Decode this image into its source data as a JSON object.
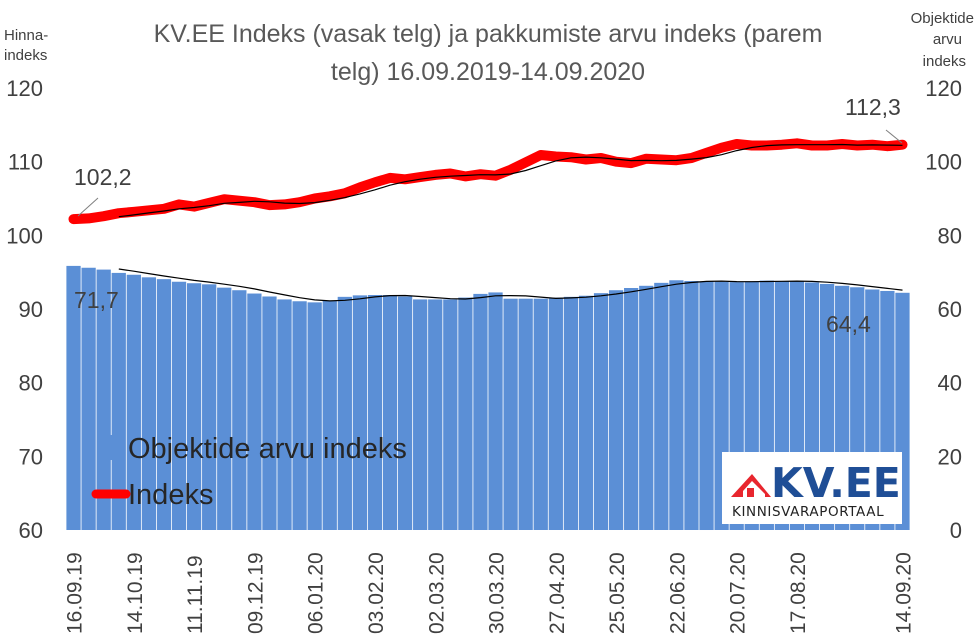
{
  "chart_data": {
    "type": "bar",
    "title_lines": [
      "KV.EE Indeks (vasak telg) ja pakkumiste arvu indeks (parem",
      "telg) 16.09.2019-14.09.2020"
    ],
    "left_axis_label_lines": [
      "Hinna-",
      "indeks"
    ],
    "right_axis_label_lines": [
      "Objektide",
      "arvu",
      "indeks"
    ],
    "left_ylim": [
      60,
      120
    ],
    "left_ticks": [
      "60",
      "70",
      "80",
      "90",
      "100",
      "110",
      "120"
    ],
    "right_ylim": [
      0,
      120
    ],
    "right_ticks": [
      "0",
      "20",
      "40",
      "60",
      "80",
      "100",
      "120"
    ],
    "x_tick_labels": [
      "16.09.19",
      "14.10.19",
      "11.11.19",
      "09.12.19",
      "06.01.20",
      "03.02.20",
      "02.03.20",
      "30.03.20",
      "27.04.20",
      "25.05.20",
      "22.06.20",
      "20.07.20",
      "17.08.20",
      "14.09.20"
    ],
    "series": [
      {
        "name": "Objektide arvu indeks",
        "axis": "right",
        "type": "bar",
        "color": "#5b8fd6",
        "values": [
          71.7,
          71.2,
          70.7,
          69.8,
          69.3,
          68.6,
          68.1,
          67.4,
          67.0,
          66.7,
          65.8,
          65.1,
          64.2,
          63.4,
          62.6,
          62.1,
          61.8,
          62.3,
          63.3,
          63.7,
          63.8,
          63.8,
          63.4,
          62.6,
          62.6,
          62.6,
          63.1,
          64.1,
          64.5,
          62.8,
          62.8,
          62.8,
          63.1,
          63.3,
          63.6,
          64.3,
          65.1,
          65.7,
          66.3,
          67.1,
          67.8,
          67.6,
          67.5,
          67.4,
          67.3,
          67.5,
          67.7,
          67.6,
          67.5,
          67.2,
          66.8,
          66.3,
          65.9,
          65.3,
          64.9,
          64.4
        ]
      },
      {
        "name": "Indeks",
        "axis": "left",
        "type": "line",
        "color": "#ff0000",
        "values": [
          102.2,
          102.3,
          102.6,
          103.0,
          103.2,
          103.4,
          103.6,
          104.2,
          103.9,
          104.4,
          104.9,
          104.7,
          104.5,
          104.1,
          104.2,
          104.5,
          105.0,
          105.3,
          105.7,
          106.5,
          107.2,
          107.8,
          107.6,
          107.9,
          108.2,
          108.4,
          108.0,
          108.3,
          108.1,
          108.9,
          109.9,
          110.9,
          110.7,
          110.6,
          110.3,
          110.5,
          110.0,
          109.8,
          110.4,
          110.3,
          110.2,
          110.5,
          111.2,
          111.9,
          112.4,
          112.2,
          112.2,
          112.3,
          112.5,
          112.2,
          112.2,
          112.4,
          112.2,
          112.3,
          112.1,
          112.3
        ]
      }
    ],
    "data_labels": {
      "index_first": "102,2",
      "index_last": "112,3",
      "count_first": "71,7",
      "count_last": "64,4"
    },
    "gridlines": false,
    "legend_position": "bottom-left inside plot",
    "logo": {
      "main": "KV.EE",
      "sub": "KINNISVARAPORTAAL",
      "color": "#1f4e96",
      "accent": "#e8262e"
    }
  }
}
